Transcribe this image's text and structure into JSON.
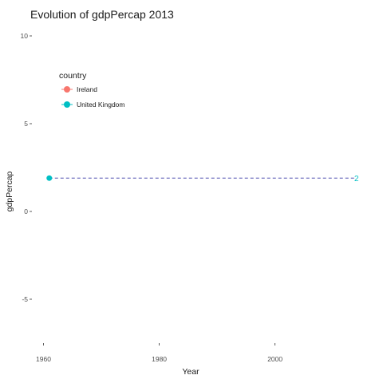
{
  "chart_data": {
    "type": "line",
    "title": "Evolution of gdpPercap  2013",
    "xlabel": "Year",
    "ylabel": "gdpPercap",
    "xlim": [
      1958,
      2017
    ],
    "ylim": [
      -7.5,
      10.5
    ],
    "x_ticks": [
      1960,
      1980,
      2000
    ],
    "y_ticks": [
      -5,
      0,
      5,
      10
    ],
    "grid": false,
    "legend": {
      "title": "country",
      "placement": "top-left",
      "entries": [
        {
          "label": "Ireland",
          "color": "#F8766D"
        },
        {
          "label": "United Kingdom",
          "color": "#00BFC4"
        }
      ]
    },
    "series": [
      {
        "name": "United Kingdom",
        "color": "#00BFC4",
        "x": [
          1961
        ],
        "y": [
          1.9
        ]
      }
    ],
    "reference_line": {
      "y": 1.9,
      "x": [
        1961,
        2014
      ],
      "color": "#3B3BA8",
      "style": "dashed"
    },
    "end_label": {
      "text": "2",
      "color": "#00BFC4"
    }
  }
}
